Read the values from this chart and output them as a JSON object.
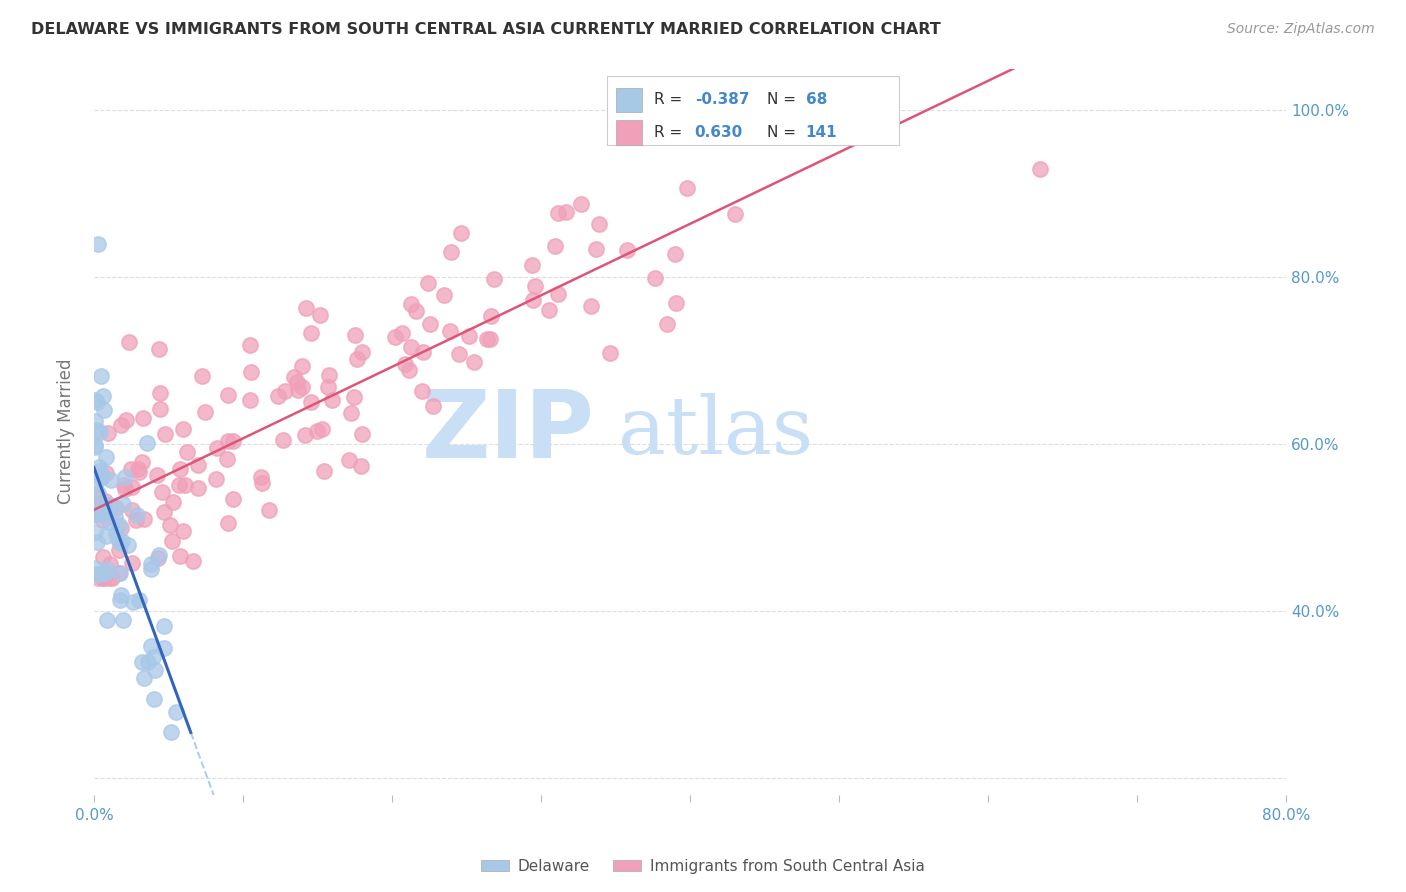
{
  "title": "DELAWARE VS IMMIGRANTS FROM SOUTH CENTRAL ASIA CURRENTLY MARRIED CORRELATION CHART",
  "source": "Source: ZipAtlas.com",
  "ylabel": "Currently Married",
  "xlim": [
    0.0,
    0.8
  ],
  "ylim": [
    0.18,
    1.05
  ],
  "delaware_R": -0.387,
  "delaware_N": 68,
  "immigrants_R": 0.63,
  "immigrants_N": 141,
  "delaware_color": "#a8c8e8",
  "immigrants_color": "#f0a0b8",
  "delaware_line_color": "#3366bb",
  "immigrants_line_color": "#dd5577",
  "dashed_line_color": "#aaccee",
  "watermark_zip": "ZIP",
  "watermark_atlas": "atlas",
  "watermark_color": "#c8dff5",
  "legend_value_color": "#4488cc",
  "background_color": "#ffffff",
  "grid_color": "#dddddd",
  "tick_label_color": "#5599cc",
  "title_color": "#333333",
  "ylabel_color": "#777777",
  "source_color": "#999999"
}
